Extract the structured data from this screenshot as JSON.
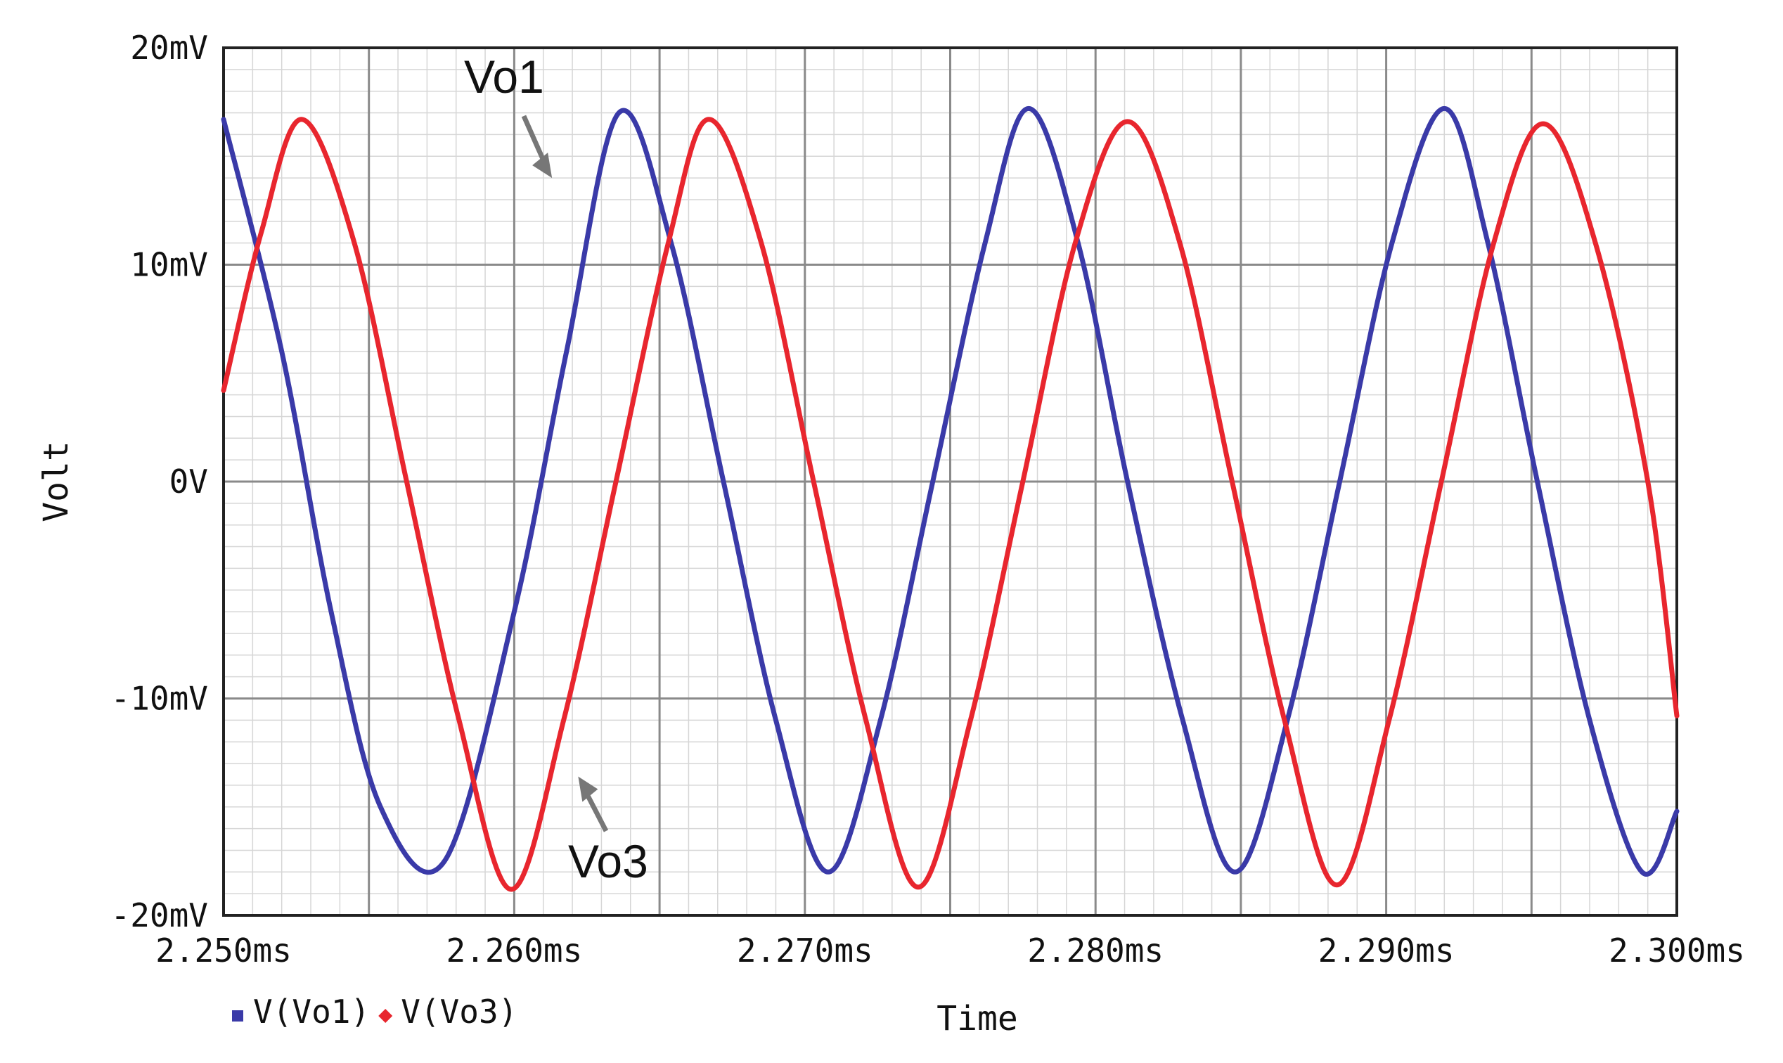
{
  "chart_data": {
    "type": "line",
    "xlabel": "Time",
    "ylabel": "Volt",
    "xlim": [
      2.25,
      2.3
    ],
    "ylim": [
      -20,
      20
    ],
    "x_unit": "ms",
    "y_unit": "mV",
    "x_ticks": [
      {
        "value": 2.25,
        "label": "2.250ms"
      },
      {
        "value": 2.26,
        "label": "2.260ms"
      },
      {
        "value": 2.27,
        "label": "2.270ms"
      },
      {
        "value": 2.28,
        "label": "2.280ms"
      },
      {
        "value": 2.29,
        "label": "2.290ms"
      },
      {
        "value": 2.3,
        "label": "2.300ms"
      }
    ],
    "y_ticks": [
      {
        "value": 20,
        "label": "20mV"
      },
      {
        "value": 10,
        "label": "10mV"
      },
      {
        "value": 0,
        "label": "0V"
      },
      {
        "value": -10,
        "label": "-10mV"
      },
      {
        "value": -20,
        "label": "-20mV"
      }
    ],
    "grid": true,
    "legend_position": "bottom-left",
    "series": [
      {
        "name": "V(Vo1)",
        "color": "#3a3aa8",
        "marker": "square",
        "x": [
          2.25,
          2.252,
          2.2537,
          2.2554,
          2.2576,
          2.26,
          2.2618,
          2.2636,
          2.2654,
          2.2672,
          2.269,
          2.2708,
          2.2726,
          2.2744,
          2.2762,
          2.2777,
          2.2794,
          2.2811,
          2.283,
          2.2848,
          2.2866,
          2.2884,
          2.2902,
          2.292,
          2.2935,
          2.2952,
          2.297,
          2.2988,
          2.3
        ],
        "y": [
          16.7,
          6.0,
          -6.0,
          -15.0,
          -17.5,
          -6.0,
          6.0,
          17.0,
          11.0,
          0.0,
          -11.0,
          -18.0,
          -11.0,
          0.0,
          11.0,
          17.2,
          11.0,
          0.0,
          -11.0,
          -18.0,
          -11.0,
          0.0,
          11.0,
          17.2,
          11.0,
          0.0,
          -11.0,
          -18.0,
          -15.2
        ]
      },
      {
        "name": "V(Vo3)",
        "color": "#e8262e",
        "marker": "diamond",
        "x": [
          2.25,
          2.2513,
          2.2527,
          2.2545,
          2.2563,
          2.2581,
          2.2599,
          2.2617,
          2.2635,
          2.2653,
          2.2667,
          2.2685,
          2.2703,
          2.2721,
          2.2739,
          2.2757,
          2.2775,
          2.2793,
          2.2811,
          2.2829,
          2.2847,
          2.2865,
          2.2883,
          2.2901,
          2.2919,
          2.2937,
          2.2954,
          2.2972,
          2.299,
          2.3
        ],
        "y": [
          4.2,
          11.5,
          16.7,
          11.0,
          0.0,
          -11.0,
          -18.8,
          -11.0,
          0.0,
          11.0,
          16.7,
          11.0,
          0.0,
          -11.0,
          -18.7,
          -11.0,
          0.0,
          11.0,
          16.6,
          11.0,
          0.0,
          -11.0,
          -18.6,
          -11.0,
          0.0,
          11.0,
          16.5,
          11.0,
          0.0,
          -10.8
        ]
      }
    ],
    "annotations": [
      {
        "text": "Vo1",
        "points_to": {
          "x": 2.2613,
          "y": 14.0
        }
      },
      {
        "text": "Vo3",
        "points_to": {
          "x": 2.2622,
          "y": -13.6
        }
      }
    ]
  }
}
